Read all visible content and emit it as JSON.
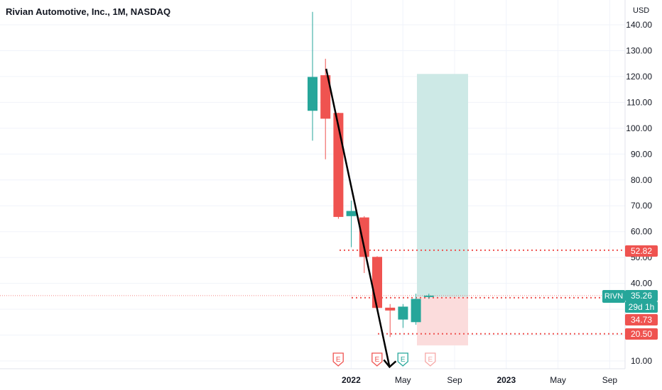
{
  "header": {
    "title": "Rivian Automotive, Inc., 1M, NASDAQ",
    "currency": "USD"
  },
  "colors": {
    "up": "#26a69a",
    "down": "#ef5350",
    "target_zone": "#cde9e6",
    "stop_zone": "#fbdcdc",
    "drawing_line": "#000000",
    "earnings_down": "#ef5350",
    "earnings_up": "#26a69a"
  },
  "chart_data": {
    "type": "candlestick",
    "title": "Rivian Automotive, Inc., 1M, NASDAQ",
    "ylabel": "USD",
    "ylim": [
      6.8,
      144.8
    ],
    "grid": true,
    "y_ticks": [
      10,
      20,
      30,
      40,
      50,
      60,
      70,
      80,
      90,
      100,
      110,
      120,
      130,
      140
    ],
    "y_tick_labels": [
      "10.00",
      "20.00",
      "30.00",
      "40.00",
      "50.00",
      "60.00",
      "70.00",
      "80.00",
      "90.00",
      "100.00",
      "110.00",
      "120.00",
      "130.00",
      "140.00"
    ],
    "x_labels": [
      "2022",
      "May",
      "Sep",
      "2023",
      "May",
      "Sep"
    ],
    "candles": [
      {
        "date": "2021-11",
        "open": 106.75,
        "high": 179.47,
        "low": 95.2,
        "close": 119.84
      },
      {
        "date": "2021-12",
        "open": 120.5,
        "high": 126.88,
        "low": 88.0,
        "close": 103.69
      },
      {
        "date": "2022-01",
        "open": 105.91,
        "high": 106.0,
        "low": 65.0,
        "close": 65.7
      },
      {
        "date": "2022-02",
        "open": 66.0,
        "high": 72.0,
        "low": 54.0,
        "close": 68.0
      },
      {
        "date": "2022-03",
        "open": 65.5,
        "high": 66.0,
        "low": 44.0,
        "close": 50.24
      },
      {
        "date": "2022-04",
        "open": 50.24,
        "high": 50.5,
        "low": 29.1,
        "close": 30.5
      },
      {
        "date": "2022-05",
        "open": 30.6,
        "high": 32.0,
        "low": 19.25,
        "close": 29.5
      },
      {
        "date": "2022-06",
        "open": 26.0,
        "high": 32.0,
        "low": 22.78,
        "close": 31.0
      },
      {
        "date": "2022-07",
        "open": 25.0,
        "high": 36.0,
        "low": 24.0,
        "close": 34.0
      },
      {
        "date": "2022-08",
        "open": 34.73,
        "high": 36.0,
        "low": 34.0,
        "close": 35.26
      }
    ],
    "horizontal_levels": [
      {
        "label": "52.82",
        "value": 52.82,
        "color": "#ef5350"
      },
      {
        "label": "20.50",
        "value": 20.5,
        "color": "#ef5350"
      }
    ],
    "position_tool": {
      "entry": 34.73,
      "target": 121.0,
      "stop": 16.0
    },
    "price_labels": [
      {
        "label": "52.82",
        "value": 52.82,
        "color": "#ef5350"
      },
      {
        "label": "35.26",
        "value": 35.26,
        "color": "#26a69a"
      },
      {
        "label": "34.73",
        "value": 34.73,
        "color": "#ef5350"
      },
      {
        "label": "20.50",
        "value": 20.5,
        "color": "#ef5350"
      }
    ],
    "symbol": "RIVN",
    "countdown": "29d 1h",
    "trend_line": {
      "from": {
        "date": "2021-12",
        "value": 123.0
      },
      "to": {
        "date": "2022-06",
        "value": 8.5
      }
    },
    "earnings": [
      {
        "date": "2021-12",
        "label": "E",
        "kind": "down"
      },
      {
        "date": "2022-03",
        "label": "E",
        "kind": "down"
      },
      {
        "date": "2022-05",
        "label": "E",
        "kind": "up"
      },
      {
        "date": "2022-08",
        "label": "E",
        "kind": "pending"
      }
    ]
  }
}
